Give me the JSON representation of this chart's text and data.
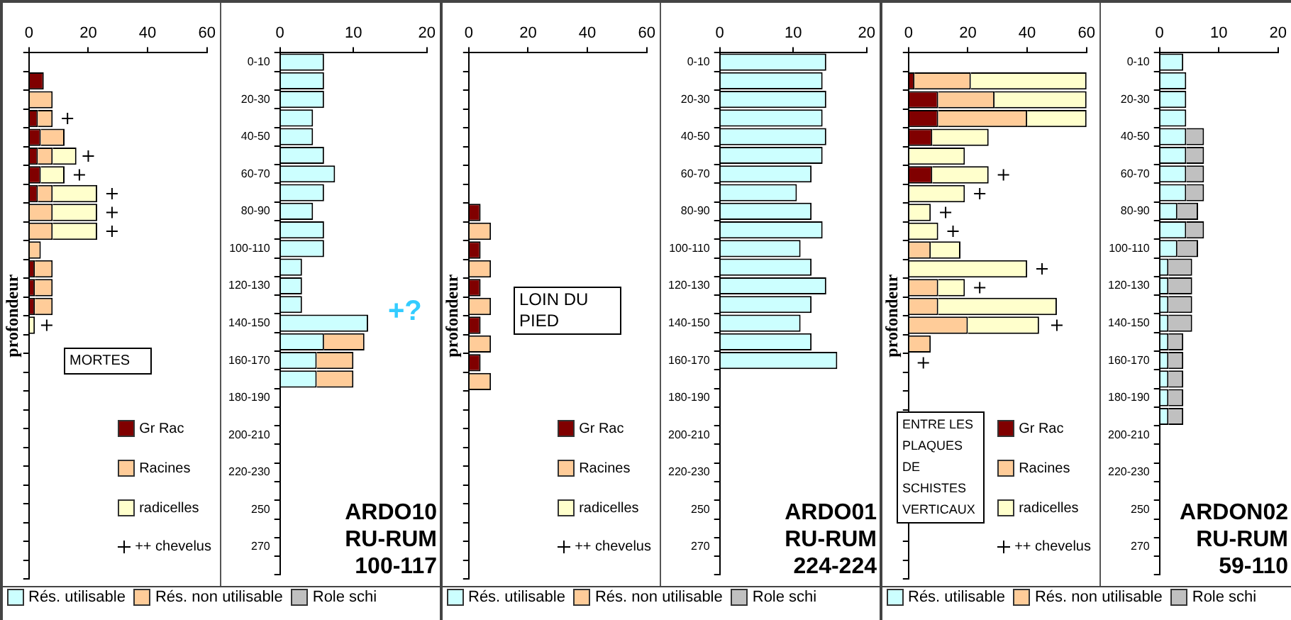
{
  "chart_data": [
    {
      "type": "bar",
      "orientation": "horizontal",
      "stacked": true,
      "ylabel": "profondeur",
      "tick_labels": "x",
      "legend": "bottom right",
      "annotations": [
        "MORTES"
      ],
      "categories": [
        null,
        null,
        null,
        null,
        null,
        null,
        null,
        null,
        null,
        null,
        null,
        null,
        null,
        null,
        null,
        null,
        null,
        null,
        null,
        null,
        null,
        null,
        null,
        null,
        null,
        null,
        null,
        null
      ],
      "xlim": [
        0,
        60
      ],
      "xticks": [
        0,
        20,
        40,
        60
      ],
      "series": [
        {
          "name": "Gr Rac",
          "color": "#800000",
          "values": [
            null,
            5,
            null,
            3,
            4,
            3,
            4,
            3,
            null,
            null,
            null,
            2,
            2,
            2,
            null,
            null,
            null,
            null,
            null,
            null,
            null,
            null,
            null,
            null,
            null,
            null,
            null,
            null
          ]
        },
        {
          "name": "Racines",
          "color": "#ffcc99",
          "values": [
            null,
            null,
            8,
            5,
            8,
            5,
            null,
            5,
            8,
            8,
            4,
            6,
            6,
            6,
            null,
            null,
            null,
            null,
            null,
            null,
            null,
            null,
            null,
            null,
            null,
            null,
            null,
            null
          ]
        },
        {
          "name": "radicelles",
          "color": "#ffffcc",
          "values": [
            null,
            null,
            null,
            null,
            null,
            8,
            8,
            15,
            15,
            15,
            null,
            null,
            null,
            null,
            2,
            null,
            null,
            null,
            null,
            null,
            null,
            null,
            null,
            null,
            null,
            null,
            null,
            null
          ]
        },
        {
          "name": "++ chevelus",
          "type": "scatter",
          "marker": "cross",
          "color": "#000000",
          "values": [
            null,
            null,
            null,
            13,
            null,
            20,
            17,
            28,
            28,
            28,
            null,
            null,
            null,
            null,
            6,
            null,
            null,
            null,
            null,
            null,
            null,
            null,
            null,
            null,
            null,
            null,
            null,
            null
          ]
        }
      ]
    },
    {
      "type": "bar",
      "orientation": "horizontal",
      "stacked": true,
      "legend": "bottom",
      "title": "ARDO10\nRU-RUM\n100-117",
      "annotations": [
        {
          "text": "+?",
          "x": 12,
          "y": "140-150"
        }
      ],
      "categories": [
        "0-10",
        null,
        "20-30",
        null,
        "40-50",
        null,
        "60-70",
        null,
        "80-90",
        null,
        "100-110",
        null,
        "120-130",
        null,
        "140-150",
        null,
        "160-170",
        null,
        "180-190",
        null,
        "200-210",
        null,
        "220-230",
        null,
        "250",
        null,
        "270",
        null
      ],
      "xlim": [
        0,
        20
      ],
      "xticks": [
        0,
        10,
        20
      ],
      "series": [
        {
          "name": "Rés. utilisable",
          "color": "#ccffff",
          "values": [
            6,
            6,
            6,
            4.5,
            4.5,
            6,
            7.5,
            6,
            4.5,
            6,
            6,
            3,
            3,
            3,
            12,
            6,
            5,
            5,
            null,
            null,
            null,
            null,
            null,
            null,
            null,
            null,
            null,
            null
          ]
        },
        {
          "name": "Rés. non utilisable",
          "color": "#ffcc99",
          "values": [
            null,
            null,
            null,
            null,
            null,
            null,
            null,
            null,
            null,
            null,
            null,
            null,
            null,
            null,
            null,
            5.5,
            5,
            5,
            null,
            null,
            null,
            null,
            null,
            null,
            null,
            null,
            null,
            null
          ]
        },
        {
          "name": "Role schi",
          "color": "#c0c0c0",
          "values": [
            null,
            null,
            null,
            null,
            null,
            null,
            null,
            null,
            null,
            null,
            null,
            null,
            null,
            null,
            null,
            null,
            null,
            null,
            null,
            null,
            null,
            null,
            null,
            null,
            null,
            null,
            null,
            null
          ]
        }
      ]
    },
    {
      "type": "bar",
      "orientation": "horizontal",
      "stacked": true,
      "ylabel": "profondeur",
      "tick_labels": "x",
      "legend": "bottom right",
      "annotations": [
        "LOIN DU PIED"
      ],
      "categories": [
        null,
        null,
        null,
        null,
        null,
        null,
        null,
        null,
        null,
        null,
        null,
        null,
        null,
        null,
        null,
        null,
        null,
        null,
        null,
        null,
        null,
        null,
        null,
        null,
        null,
        null,
        null,
        null
      ],
      "xlim": [
        0,
        60
      ],
      "xticks": [
        0,
        20,
        40,
        60
      ],
      "series": [
        {
          "name": "Gr Rac",
          "color": "#800000",
          "values": [
            null,
            null,
            null,
            null,
            null,
            null,
            null,
            null,
            4,
            null,
            4,
            null,
            4,
            null,
            4,
            null,
            4,
            null,
            null,
            null,
            null,
            null,
            null,
            null,
            null,
            null,
            null,
            null
          ]
        },
        {
          "name": "Racines",
          "color": "#ffcc99",
          "values": [
            null,
            null,
            null,
            null,
            null,
            null,
            null,
            null,
            null,
            7.5,
            null,
            7.5,
            null,
            7.5,
            null,
            7.5,
            null,
            7.5,
            null,
            null,
            null,
            null,
            null,
            null,
            null,
            null,
            null,
            null
          ]
        },
        {
          "name": "radicelles",
          "color": "#ffffcc",
          "values": [
            null,
            null,
            null,
            null,
            null,
            null,
            null,
            null,
            null,
            null,
            null,
            null,
            null,
            null,
            null,
            null,
            null,
            null,
            null,
            null,
            null,
            null,
            null,
            null,
            null,
            null,
            null,
            null
          ]
        },
        {
          "name": "++ chevelus",
          "type": "scatter",
          "marker": "cross",
          "color": "#000000",
          "values": [
            null,
            null,
            null,
            null,
            null,
            null,
            null,
            null,
            null,
            null,
            null,
            null,
            null,
            null,
            null,
            null,
            null,
            null,
            null,
            null,
            null,
            null,
            null,
            null,
            null,
            null,
            null,
            null
          ]
        }
      ]
    },
    {
      "type": "bar",
      "orientation": "horizontal",
      "stacked": true,
      "legend": "bottom",
      "title": "ARDO01\nRU-RUM\n224-224",
      "categories": [
        "0-10",
        null,
        "20-30",
        null,
        "40-50",
        null,
        "60-70",
        null,
        "80-90",
        null,
        "100-110",
        null,
        "120-130",
        null,
        "140-150",
        null,
        "160-170",
        null,
        "180-190",
        null,
        "200-210",
        null,
        "220-230",
        null,
        "250",
        null,
        "270",
        null
      ],
      "xlim": [
        0,
        20
      ],
      "xticks": [
        0,
        10,
        20
      ],
      "series": [
        {
          "name": "Rés. utilisable",
          "color": "#ccffff",
          "values": [
            14.5,
            14,
            14.5,
            14,
            14.5,
            14,
            12.5,
            10.5,
            12.5,
            14,
            11,
            12.5,
            14.5,
            12.5,
            11,
            12.5,
            16,
            null,
            null,
            null,
            null,
            null,
            null,
            null,
            null,
            null,
            null,
            null
          ]
        },
        {
          "name": "Rés. non utilisable",
          "color": "#ffcc99",
          "values": [
            null,
            null,
            null,
            null,
            null,
            null,
            null,
            null,
            null,
            null,
            null,
            null,
            null,
            null,
            null,
            null,
            null,
            null,
            null,
            null,
            null,
            null,
            null,
            null,
            null,
            null,
            null,
            null
          ]
        },
        {
          "name": "Role schi",
          "color": "#c0c0c0",
          "values": [
            null,
            null,
            null,
            null,
            null,
            null,
            null,
            null,
            null,
            null,
            null,
            null,
            null,
            null,
            null,
            null,
            null,
            null,
            null,
            null,
            null,
            null,
            null,
            null,
            null,
            null,
            null,
            null
          ]
        }
      ]
    },
    {
      "type": "bar",
      "orientation": "horizontal",
      "stacked": true,
      "ylabel": "profondeur",
      "tick_labels": "x",
      "legend": "bottom right",
      "annotations": [
        "ENTRE LES PLAQUES DE SCHISTES VERTICAUX"
      ],
      "categories": [
        null,
        null,
        null,
        null,
        null,
        null,
        null,
        null,
        null,
        null,
        null,
        null,
        null,
        null,
        null,
        null,
        null,
        null,
        null,
        null,
        null,
        null,
        null,
        null,
        null,
        null,
        null,
        null
      ],
      "xlim": [
        0,
        60
      ],
      "xticks": [
        0,
        20,
        40,
        60
      ],
      "series": [
        {
          "name": "Gr Rac",
          "color": "#800000",
          "values": [
            null,
            2,
            10,
            10,
            8,
            null,
            8,
            null,
            null,
            null,
            null,
            null,
            null,
            null,
            null,
            null,
            null,
            null,
            null,
            null,
            null,
            null,
            null,
            null,
            null,
            null,
            null,
            null
          ]
        },
        {
          "name": "Racines",
          "color": "#ffcc99",
          "values": [
            null,
            19,
            19,
            30,
            null,
            null,
            null,
            null,
            null,
            null,
            7.5,
            null,
            10,
            10,
            20,
            7.5,
            null,
            null,
            null,
            null,
            null,
            null,
            null,
            null,
            null,
            null,
            null,
            null
          ]
        },
        {
          "name": "radicelles",
          "color": "#ffffcc",
          "values": [
            null,
            39,
            31,
            20,
            19,
            19,
            19,
            19,
            7.5,
            10,
            10,
            40,
            9,
            40,
            24,
            null,
            null,
            null,
            null,
            null,
            null,
            null,
            null,
            null,
            null,
            null,
            null,
            null
          ]
        },
        {
          "name": "++ chevelus",
          "type": "scatter",
          "marker": "cross",
          "color": "#000000",
          "values": [
            null,
            null,
            null,
            null,
            null,
            null,
            32,
            24,
            12.5,
            15,
            null,
            45,
            24,
            null,
            50,
            null,
            5,
            null,
            null,
            null,
            null,
            null,
            null,
            null,
            null,
            null,
            null,
            null
          ]
        }
      ]
    },
    {
      "type": "bar",
      "orientation": "horizontal",
      "stacked": true,
      "legend": "bottom",
      "title": "ARDON02\nRU-RUM\n59-110",
      "categories": [
        "0-10",
        null,
        "20-30",
        null,
        "40-50",
        null,
        "60-70",
        null,
        "80-90",
        null,
        "100-110",
        null,
        "120-130",
        null,
        "140-150",
        null,
        "160-170",
        null,
        "180-190",
        null,
        "200-210",
        null,
        "220-230",
        null,
        "250",
        null,
        "270",
        null
      ],
      "xlim": [
        0,
        20
      ],
      "xticks": [
        0,
        10,
        20
      ],
      "series": [
        {
          "name": "Rés. utilisable",
          "color": "#ccffff",
          "values": [
            4,
            4.5,
            4.5,
            4.5,
            4.5,
            4.5,
            4.5,
            4.5,
            3,
            4.5,
            3,
            1.5,
            1.5,
            1.5,
            1.5,
            1.5,
            1.5,
            1.5,
            1.5,
            1.5,
            null,
            null,
            null,
            null,
            null,
            null,
            null,
            null
          ]
        },
        {
          "name": "Rés. non utilisable",
          "color": "#ffcc99",
          "values": [
            null,
            null,
            null,
            null,
            null,
            null,
            null,
            null,
            null,
            null,
            null,
            null,
            null,
            null,
            null,
            null,
            null,
            null,
            null,
            null,
            null,
            null,
            null,
            null,
            null,
            null,
            null,
            null
          ]
        },
        {
          "name": "Role schi",
          "color": "#c0c0c0",
          "values": [
            null,
            null,
            null,
            null,
            3,
            3,
            3,
            3,
            3.5,
            3,
            3.5,
            4,
            4,
            4,
            4,
            2.5,
            2.5,
            2.5,
            2.5,
            2.5,
            null,
            null,
            null,
            null,
            null,
            null,
            null,
            null
          ]
        }
      ]
    }
  ]
}
